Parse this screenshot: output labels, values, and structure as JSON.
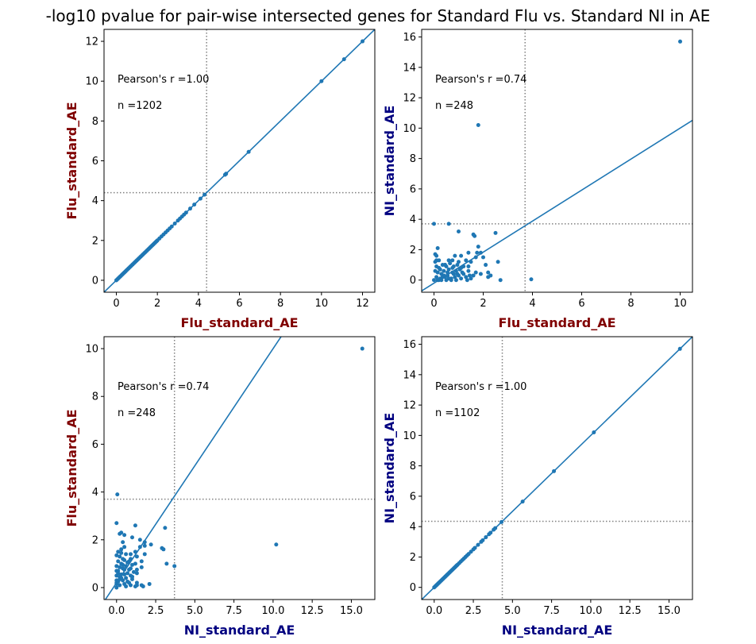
{
  "figure": {
    "title": "-log10 pvalue for pair-wise intersected genes for Standard Flu vs. Standard NI in AE"
  },
  "colors": {
    "flu_label": "#800000",
    "ni_label": "#000080",
    "points": "#1f77b4",
    "fit_line": "#1f77b4",
    "threshold_line": "#808080"
  },
  "chart_data": [
    {
      "type": "scatter",
      "xlabel": "Flu_standard_AE",
      "ylabel": "Flu_standard_AE",
      "xlabel_color": "#800000",
      "ylabel_color": "#800000",
      "xlim": [
        -0.6,
        12.6
      ],
      "ylim": [
        -0.6,
        12.6
      ],
      "xticks": [
        0,
        2,
        4,
        6,
        8,
        10,
        12
      ],
      "xtick_labels": [
        "0",
        "2",
        "4",
        "6",
        "8",
        "10",
        "12"
      ],
      "yticks": [
        0,
        2,
        4,
        6,
        8,
        10,
        12
      ],
      "ytick_labels": [
        "0",
        "2",
        "4",
        "6",
        "8",
        "10",
        "12"
      ],
      "annotations": [
        "Pearson's r =1.00",
        "n =1202"
      ],
      "threshold_x": 4.4,
      "threshold_y": 4.4,
      "fit": {
        "slope": 1.0,
        "intercept": 0.0
      },
      "points": [
        [
          0.0,
          0.0
        ],
        [
          0.05,
          0.05
        ],
        [
          0.1,
          0.1
        ],
        [
          0.15,
          0.15
        ],
        [
          0.2,
          0.2
        ],
        [
          0.25,
          0.25
        ],
        [
          0.3,
          0.3
        ],
        [
          0.35,
          0.35
        ],
        [
          0.4,
          0.4
        ],
        [
          0.45,
          0.45
        ],
        [
          0.5,
          0.5
        ],
        [
          0.55,
          0.55
        ],
        [
          0.6,
          0.6
        ],
        [
          0.65,
          0.65
        ],
        [
          0.7,
          0.7
        ],
        [
          0.75,
          0.75
        ],
        [
          0.8,
          0.8
        ],
        [
          0.85,
          0.85
        ],
        [
          0.9,
          0.9
        ],
        [
          0.95,
          0.95
        ],
        [
          1.0,
          1.0
        ],
        [
          1.05,
          1.05
        ],
        [
          1.1,
          1.1
        ],
        [
          1.15,
          1.15
        ],
        [
          1.2,
          1.2
        ],
        [
          1.25,
          1.25
        ],
        [
          1.3,
          1.3
        ],
        [
          1.35,
          1.35
        ],
        [
          1.4,
          1.4
        ],
        [
          1.45,
          1.45
        ],
        [
          1.5,
          1.5
        ],
        [
          1.55,
          1.55
        ],
        [
          1.6,
          1.6
        ],
        [
          1.65,
          1.65
        ],
        [
          1.7,
          1.7
        ],
        [
          1.75,
          1.75
        ],
        [
          1.8,
          1.8
        ],
        [
          1.85,
          1.85
        ],
        [
          1.9,
          1.9
        ],
        [
          1.95,
          1.95
        ],
        [
          2.0,
          2.0
        ],
        [
          2.1,
          2.1
        ],
        [
          2.2,
          2.2
        ],
        [
          2.3,
          2.3
        ],
        [
          2.4,
          2.4
        ],
        [
          2.5,
          2.5
        ],
        [
          2.6,
          2.6
        ],
        [
          2.7,
          2.7
        ],
        [
          2.85,
          2.85
        ],
        [
          3.0,
          3.0
        ],
        [
          3.1,
          3.1
        ],
        [
          3.2,
          3.2
        ],
        [
          3.3,
          3.3
        ],
        [
          3.4,
          3.4
        ],
        [
          3.6,
          3.6
        ],
        [
          3.8,
          3.8
        ],
        [
          4.1,
          4.1
        ],
        [
          4.3,
          4.3
        ],
        [
          5.3,
          5.3
        ],
        [
          5.35,
          5.35
        ],
        [
          6.45,
          6.45
        ],
        [
          10.0,
          10.0
        ],
        [
          11.1,
          11.1
        ],
        [
          12.0,
          12.0
        ]
      ]
    },
    {
      "type": "scatter",
      "xlabel": "Flu_standard_AE",
      "ylabel": "NI_standard_AE",
      "xlabel_color": "#800000",
      "ylabel_color": "#000080",
      "xlim": [
        -0.5,
        10.5
      ],
      "ylim": [
        -0.8,
        16.5
      ],
      "xticks": [
        0,
        2,
        4,
        6,
        8,
        10
      ],
      "xtick_labels": [
        "0",
        "2",
        "4",
        "6",
        "8",
        "10"
      ],
      "yticks": [
        0,
        2,
        4,
        6,
        8,
        10,
        12,
        14,
        16
      ],
      "ytick_labels": [
        "0",
        "2",
        "4",
        "6",
        "8",
        "10",
        "12",
        "14",
        "16"
      ],
      "annotations": [
        "Pearson's r =0.74",
        "n =248"
      ],
      "threshold_x": 3.7,
      "threshold_y": 3.7,
      "fit": {
        "slope": 1.02,
        "intercept": -0.2
      },
      "points": [
        [
          0.0,
          0.0
        ],
        [
          0.1,
          0.2
        ],
        [
          0.15,
          0.5
        ],
        [
          0.2,
          0.8
        ],
        [
          0.25,
          0.1
        ],
        [
          0.3,
          0.4
        ],
        [
          0.35,
          1.0
        ],
        [
          0.4,
          0.6
        ],
        [
          0.45,
          0.2
        ],
        [
          0.5,
          0.9
        ],
        [
          0.55,
          0.3
        ],
        [
          0.6,
          0.7
        ],
        [
          0.65,
          1.1
        ],
        [
          0.7,
          0.1
        ],
        [
          0.75,
          0.5
        ],
        [
          0.8,
          0.9
        ],
        [
          0.85,
          0.2
        ],
        [
          0.9,
          0.6
        ],
        [
          0.95,
          1.0
        ],
        [
          1.0,
          0.3
        ],
        [
          1.05,
          0.7
        ],
        [
          1.1,
          0.1
        ],
        [
          1.15,
          0.5
        ],
        [
          1.2,
          0.9
        ],
        [
          1.3,
          0.2
        ],
        [
          1.4,
          0.6
        ],
        [
          1.5,
          0.1
        ],
        [
          0.05,
          1.2
        ],
        [
          0.1,
          1.3
        ],
        [
          0.2,
          0.0
        ],
        [
          0.3,
          0.0
        ],
        [
          0.5,
          0.0
        ],
        [
          0.7,
          0.0
        ],
        [
          0.9,
          0.0
        ],
        [
          0.05,
          0.6
        ],
        [
          0.1,
          0.9
        ],
        [
          0.25,
          0.7
        ],
        [
          0.4,
          0.3
        ],
        [
          0.6,
          0.1
        ],
        [
          0.8,
          0.4
        ],
        [
          0.15,
          0.0
        ],
        [
          0.35,
          0.2
        ],
        [
          0.55,
          0.5
        ],
        [
          0.75,
          0.8
        ],
        [
          0.95,
          0.4
        ],
        [
          1.1,
          0.8
        ],
        [
          1.2,
          0.4
        ],
        [
          1.35,
          0.0
        ],
        [
          1.45,
          0.3
        ],
        [
          0.45,
          1.0
        ],
        [
          0.05,
          1.7
        ],
        [
          0.1,
          1.6
        ],
        [
          0.2,
          1.3
        ],
        [
          0.15,
          2.1
        ],
        [
          0.45,
          1.0
        ],
        [
          0.6,
          1.3
        ],
        [
          0.75,
          1.3
        ],
        [
          0.85,
          1.6
        ],
        [
          1.0,
          1.2
        ],
        [
          1.1,
          1.6
        ],
        [
          1.3,
          1.3
        ],
        [
          1.4,
          1.8
        ],
        [
          1.5,
          1.2
        ],
        [
          1.6,
          3.0
        ],
        [
          1.65,
          2.9
        ],
        [
          1.7,
          1.5
        ],
        [
          1.75,
          1.8
        ],
        [
          1.9,
          1.8
        ],
        [
          2.0,
          1.5
        ],
        [
          2.1,
          1.0
        ],
        [
          2.2,
          0.5
        ],
        [
          2.3,
          0.3
        ],
        [
          2.5,
          3.1
        ],
        [
          2.6,
          1.2
        ],
        [
          2.7,
          0.0
        ],
        [
          1.8,
          2.2
        ],
        [
          1.9,
          0.4
        ],
        [
          1.0,
          3.2
        ],
        [
          0.6,
          3.7
        ],
        [
          2.2,
          0.2
        ],
        [
          1.6,
          0.3
        ],
        [
          1.7,
          0.5
        ],
        [
          1.4,
          0.9
        ],
        [
          0.0,
          3.7
        ],
        [
          1.8,
          10.2
        ],
        [
          3.95,
          0.05
        ],
        [
          10.0,
          15.7
        ]
      ]
    },
    {
      "type": "scatter",
      "xlabel": "NI_standard_AE",
      "ylabel": "Flu_standard_AE",
      "xlabel_color": "#000080",
      "ylabel_color": "#800000",
      "xlim": [
        -0.8,
        16.5
      ],
      "ylim": [
        -0.5,
        10.5
      ],
      "xticks": [
        0,
        2.5,
        5,
        7.5,
        10,
        12.5,
        15
      ],
      "xtick_labels": [
        "0.0",
        "2.5",
        "5.0",
        "7.5",
        "10.0",
        "12.5",
        "15.0"
      ],
      "yticks": [
        0,
        2,
        4,
        6,
        8,
        10
      ],
      "ytick_labels": [
        "0",
        "2",
        "4",
        "6",
        "8",
        "10"
      ],
      "annotations": [
        "Pearson's r =0.74",
        "n =248"
      ],
      "threshold_x": 3.7,
      "threshold_y": 3.7,
      "fit": {
        "slope": 0.98,
        "intercept": 0.2
      },
      "points": [
        [
          0.0,
          0.0
        ],
        [
          0.2,
          0.1
        ],
        [
          0.5,
          0.15
        ],
        [
          0.8,
          0.2
        ],
        [
          0.1,
          0.25
        ],
        [
          0.4,
          0.3
        ],
        [
          1.0,
          0.35
        ],
        [
          0.6,
          0.4
        ],
        [
          0.2,
          0.45
        ],
        [
          0.9,
          0.5
        ],
        [
          0.3,
          0.55
        ],
        [
          0.7,
          0.6
        ],
        [
          1.1,
          0.65
        ],
        [
          0.1,
          0.7
        ],
        [
          0.5,
          0.75
        ],
        [
          0.9,
          0.8
        ],
        [
          0.2,
          0.85
        ],
        [
          0.6,
          0.9
        ],
        [
          1.0,
          0.95
        ],
        [
          0.3,
          1.0
        ],
        [
          0.7,
          1.05
        ],
        [
          0.1,
          1.1
        ],
        [
          0.5,
          1.15
        ],
        [
          0.9,
          1.2
        ],
        [
          0.2,
          1.3
        ],
        [
          0.6,
          1.4
        ],
        [
          0.1,
          1.5
        ],
        [
          1.2,
          0.05
        ],
        [
          1.3,
          0.1
        ],
        [
          0.0,
          0.2
        ],
        [
          0.0,
          0.3
        ],
        [
          0.0,
          0.5
        ],
        [
          0.0,
          0.7
        ],
        [
          0.0,
          0.9
        ],
        [
          0.6,
          0.05
        ],
        [
          0.9,
          0.1
        ],
        [
          0.7,
          0.25
        ],
        [
          0.3,
          0.4
        ],
        [
          0.1,
          0.6
        ],
        [
          0.4,
          0.8
        ],
        [
          0.0,
          0.15
        ],
        [
          0.2,
          0.35
        ],
        [
          0.5,
          0.55
        ],
        [
          0.8,
          0.75
        ],
        [
          0.4,
          0.95
        ],
        [
          0.8,
          1.1
        ],
        [
          0.4,
          1.2
        ],
        [
          0.0,
          1.35
        ],
        [
          0.3,
          1.45
        ],
        [
          1.0,
          0.45
        ],
        [
          1.7,
          0.05
        ],
        [
          1.6,
          0.1
        ],
        [
          1.3,
          0.2
        ],
        [
          2.1,
          0.15
        ],
        [
          1.0,
          0.45
        ],
        [
          1.3,
          0.6
        ],
        [
          1.3,
          0.75
        ],
        [
          1.6,
          0.85
        ],
        [
          1.2,
          1.0
        ],
        [
          1.6,
          1.1
        ],
        [
          1.3,
          1.3
        ],
        [
          1.8,
          1.4
        ],
        [
          1.2,
          1.5
        ],
        [
          3.0,
          1.6
        ],
        [
          2.9,
          1.65
        ],
        [
          1.5,
          1.7
        ],
        [
          1.8,
          1.75
        ],
        [
          1.8,
          1.9
        ],
        [
          1.5,
          2.0
        ],
        [
          1.0,
          2.1
        ],
        [
          0.5,
          2.2
        ],
        [
          0.3,
          2.3
        ],
        [
          3.1,
          2.5
        ],
        [
          1.2,
          2.6
        ],
        [
          0.0,
          2.7
        ],
        [
          2.2,
          1.8
        ],
        [
          0.4,
          1.9
        ],
        [
          3.2,
          1.0
        ],
        [
          3.7,
          0.9
        ],
        [
          0.2,
          2.25
        ],
        [
          0.3,
          1.6
        ],
        [
          0.5,
          1.7
        ],
        [
          0.9,
          1.4
        ],
        [
          0.05,
          3.9
        ],
        [
          10.2,
          1.8
        ],
        [
          15.7,
          10.0
        ]
      ]
    },
    {
      "type": "scatter",
      "xlabel": "NI_standard_AE",
      "ylabel": "NI_standard_AE",
      "xlabel_color": "#000080",
      "ylabel_color": "#000080",
      "xlim": [
        -0.8,
        16.5
      ],
      "ylim": [
        -0.8,
        16.5
      ],
      "xticks": [
        0,
        2.5,
        5,
        7.5,
        10,
        12.5,
        15
      ],
      "xtick_labels": [
        "0.0",
        "2.5",
        "5.0",
        "7.5",
        "10.0",
        "12.5",
        "15.0"
      ],
      "yticks": [
        0,
        2,
        4,
        6,
        8,
        10,
        12,
        14,
        16
      ],
      "ytick_labels": [
        "0",
        "2",
        "4",
        "6",
        "8",
        "10",
        "12",
        "14",
        "16"
      ],
      "annotations": [
        "Pearson's r =1.00",
        "n =1102"
      ],
      "threshold_x": 4.35,
      "threshold_y": 4.35,
      "fit": {
        "slope": 1.0,
        "intercept": 0.0
      },
      "points": [
        [
          0.0,
          0.0
        ],
        [
          0.05,
          0.05
        ],
        [
          0.1,
          0.1
        ],
        [
          0.15,
          0.15
        ],
        [
          0.2,
          0.2
        ],
        [
          0.25,
          0.25
        ],
        [
          0.3,
          0.3
        ],
        [
          0.35,
          0.35
        ],
        [
          0.4,
          0.4
        ],
        [
          0.45,
          0.45
        ],
        [
          0.5,
          0.5
        ],
        [
          0.55,
          0.55
        ],
        [
          0.6,
          0.6
        ],
        [
          0.65,
          0.65
        ],
        [
          0.7,
          0.7
        ],
        [
          0.75,
          0.75
        ],
        [
          0.8,
          0.8
        ],
        [
          0.85,
          0.85
        ],
        [
          0.9,
          0.9
        ],
        [
          0.95,
          0.95
        ],
        [
          1.0,
          1.0
        ],
        [
          1.05,
          1.05
        ],
        [
          1.1,
          1.1
        ],
        [
          1.15,
          1.15
        ],
        [
          1.2,
          1.2
        ],
        [
          1.25,
          1.25
        ],
        [
          1.3,
          1.3
        ],
        [
          1.35,
          1.35
        ],
        [
          1.4,
          1.4
        ],
        [
          1.45,
          1.45
        ],
        [
          1.5,
          1.5
        ],
        [
          1.6,
          1.6
        ],
        [
          1.7,
          1.7
        ],
        [
          1.8,
          1.8
        ],
        [
          1.9,
          1.9
        ],
        [
          2.0,
          2.0
        ],
        [
          2.1,
          2.1
        ],
        [
          2.2,
          2.2
        ],
        [
          2.35,
          2.35
        ],
        [
          2.5,
          2.5
        ],
        [
          2.6,
          2.6
        ],
        [
          2.8,
          2.8
        ],
        [
          3.0,
          3.0
        ],
        [
          3.1,
          3.1
        ],
        [
          3.3,
          3.3
        ],
        [
          3.5,
          3.5
        ],
        [
          3.6,
          3.6
        ],
        [
          3.8,
          3.8
        ],
        [
          3.9,
          3.9
        ],
        [
          4.3,
          4.3
        ],
        [
          5.65,
          5.65
        ],
        [
          7.65,
          7.65
        ],
        [
          10.2,
          10.2
        ],
        [
          15.7,
          15.7
        ]
      ]
    }
  ]
}
